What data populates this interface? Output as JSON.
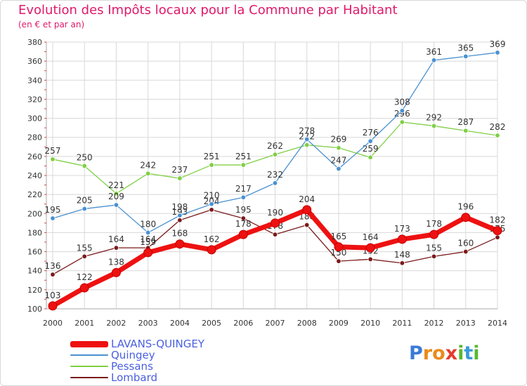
{
  "title": "Evolution des Impôts locaux pour la Commune par Habitant",
  "subtitle": "(en € et par an)",
  "logo": {
    "text": "Proxiti",
    "letters": [
      "P",
      "r",
      "o",
      "x",
      "i",
      "t",
      "i"
    ],
    "colors": [
      "#3a7bd5",
      "#e98b1c",
      "#e98b1c",
      "#e53b2c",
      "#58b82f",
      "#3a9ad9",
      "#58b82f"
    ]
  },
  "chart_data": {
    "type": "line",
    "x": [
      2000,
      2001,
      2002,
      2003,
      2004,
      2005,
      2006,
      2007,
      2008,
      2009,
      2010,
      2011,
      2012,
      2013,
      2014
    ],
    "ylim": [
      100,
      380
    ],
    "yticks": [
      100,
      120,
      140,
      160,
      180,
      200,
      220,
      240,
      260,
      280,
      300,
      320,
      340,
      360,
      380
    ],
    "grid": true,
    "legend_position": "bottom",
    "series": [
      {
        "name": "Lombard",
        "color": "#7a1a1a",
        "values": [
          136,
          155,
          164,
          164,
          193,
          204,
          195,
          178,
          188,
          150,
          152,
          148,
          155,
          160,
          175
        ]
      },
      {
        "name": "Pessans",
        "color": "#7fcf45",
        "values": [
          257,
          250,
          221,
          242,
          237,
          251,
          251,
          262,
          272,
          269,
          259,
          296,
          292,
          287,
          282
        ]
      },
      {
        "name": "Quingey",
        "color": "#4a90d0",
        "values": [
          195,
          205,
          209,
          180,
          198,
          210,
          217,
          232,
          278,
          247,
          276,
          308,
          361,
          365,
          369
        ]
      },
      {
        "name": "LAVANS-QUINGEY",
        "color": "#ee1111",
        "values": [
          103,
          122,
          138,
          159,
          168,
          162,
          178,
          190,
          204,
          165,
          164,
          173,
          178,
          196,
          182
        ]
      }
    ],
    "legend": [
      "LAVANS-QUINGEY",
      "Quingey",
      "Pessans",
      "Lombard"
    ]
  }
}
